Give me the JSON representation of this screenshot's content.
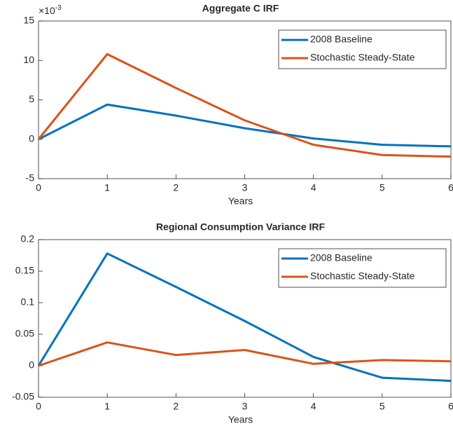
{
  "chart_data": [
    {
      "type": "line",
      "title": "Aggregate C IRF",
      "x_label": "Years",
      "y_multiplier": {
        "base": "×10",
        "exponent": "-3"
      },
      "x": [
        0,
        1,
        2,
        3,
        4,
        5,
        6
      ],
      "xlim": [
        0,
        6
      ],
      "xticks": [
        0,
        1,
        2,
        3,
        4,
        5,
        6
      ],
      "ylim": [
        -5,
        15
      ],
      "yticks": [
        -5,
        0,
        5,
        10,
        15
      ],
      "grid": false,
      "legend": "upper right",
      "series": [
        {
          "name": "2008 Baseline",
          "color": "#0072BD",
          "values": [
            0,
            4.4,
            3.0,
            1.4,
            0.1,
            -0.7,
            -0.9
          ]
        },
        {
          "name": "Stochastic Steady-State",
          "color": "#D95319",
          "values": [
            0,
            10.8,
            6.5,
            2.4,
            -0.7,
            -2.0,
            -2.2
          ]
        }
      ]
    },
    {
      "type": "line",
      "title": "Regional Consumption Variance IRF",
      "x_label": "Years",
      "x": [
        0,
        1,
        2,
        3,
        4,
        5,
        6
      ],
      "xlim": [
        0,
        6
      ],
      "xticks": [
        0,
        1,
        2,
        3,
        4,
        5,
        6
      ],
      "ylim": [
        -0.05,
        0.2
      ],
      "yticks": [
        -0.05,
        0,
        0.05,
        0.1,
        0.15,
        0.2
      ],
      "grid": false,
      "legend": "upper right",
      "series": [
        {
          "name": "2008 Baseline",
          "color": "#0072BD",
          "values": [
            0,
            0.178,
            0.125,
            0.071,
            0.014,
            -0.019,
            -0.024
          ]
        },
        {
          "name": "Stochastic Steady-State",
          "color": "#D95319",
          "values": [
            0,
            0.037,
            0.017,
            0.025,
            0.003,
            0.009,
            0.007
          ]
        }
      ]
    }
  ]
}
